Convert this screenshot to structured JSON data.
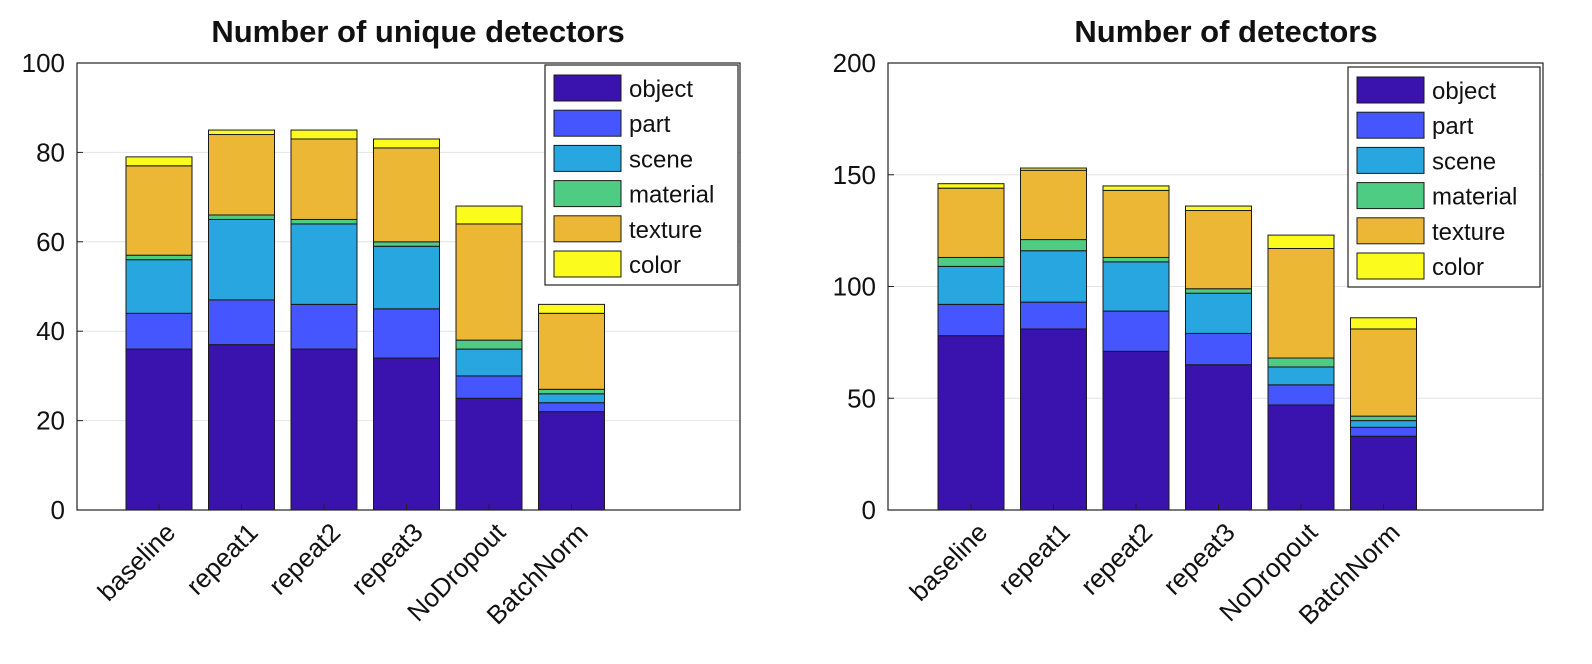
{
  "colors": {
    "object": "#3a12ad",
    "part": "#4556ff",
    "scene": "#27a6df",
    "material": "#4ecc84",
    "texture": "#edb736",
    "color": "#fbfb1e"
  },
  "chart_data": [
    {
      "type": "bar",
      "stacked": true,
      "title": "Number of unique detectors",
      "xlabel": "",
      "ylabel": "",
      "ylim": [
        0,
        100
      ],
      "yticks": [
        "0",
        "20",
        "40",
        "60",
        "80",
        "100"
      ],
      "grid": true,
      "legend_position": "top-right",
      "categories": [
        "baseline",
        "repeat1",
        "repeat2",
        "repeat3",
        "NoDropout",
        "BatchNorm"
      ],
      "series": [
        {
          "name": "object",
          "values": [
            36,
            37,
            36,
            34,
            25,
            22
          ]
        },
        {
          "name": "part",
          "values": [
            8,
            10,
            10,
            11,
            5,
            2
          ]
        },
        {
          "name": "scene",
          "values": [
            12,
            18,
            18,
            14,
            6,
            2
          ]
        },
        {
          "name": "material",
          "values": [
            1,
            1,
            1,
            1,
            2,
            1
          ]
        },
        {
          "name": "texture",
          "values": [
            20,
            18,
            18,
            21,
            26,
            17
          ]
        },
        {
          "name": "color",
          "values": [
            2,
            1,
            2,
            2,
            4,
            2
          ]
        }
      ]
    },
    {
      "type": "bar",
      "stacked": true,
      "title": "Number of detectors",
      "xlabel": "",
      "ylabel": "",
      "ylim": [
        0,
        200
      ],
      "yticks": [
        "0",
        "50",
        "100",
        "150",
        "200"
      ],
      "grid": true,
      "legend_position": "top-right",
      "categories": [
        "baseline",
        "repeat1",
        "repeat2",
        "repeat3",
        "NoDropout",
        "BatchNorm"
      ],
      "series": [
        {
          "name": "object",
          "values": [
            78,
            81,
            71,
            65,
            47,
            33
          ]
        },
        {
          "name": "part",
          "values": [
            14,
            12,
            18,
            14,
            9,
            4
          ]
        },
        {
          "name": "scene",
          "values": [
            17,
            23,
            22,
            18,
            8,
            3
          ]
        },
        {
          "name": "material",
          "values": [
            4,
            5,
            2,
            2,
            4,
            2
          ]
        },
        {
          "name": "texture",
          "values": [
            31,
            31,
            30,
            35,
            49,
            39
          ]
        },
        {
          "name": "color",
          "values": [
            2,
            1,
            2,
            2,
            6,
            5
          ]
        }
      ]
    }
  ]
}
